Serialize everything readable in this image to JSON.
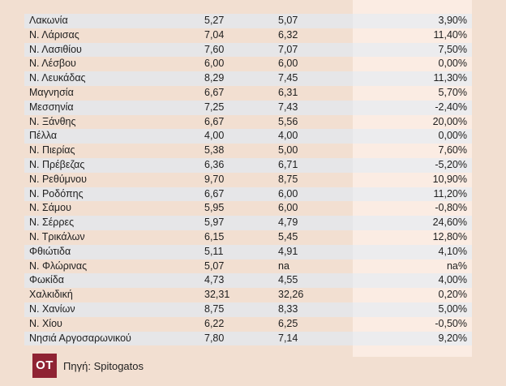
{
  "table": {
    "rows": [
      {
        "region": "Λακωνία",
        "v1": "5,27",
        "v2": "5,07",
        "change": "3,90%"
      },
      {
        "region": "Ν. Λάρισας",
        "v1": "7,04",
        "v2": "6,32",
        "change": "11,40%"
      },
      {
        "region": "Ν. Λασιθίου",
        "v1": "7,60",
        "v2": "7,07",
        "change": "7,50%"
      },
      {
        "region": "Ν. Λέσβου",
        "v1": "6,00",
        "v2": "6,00",
        "change": "0,00%"
      },
      {
        "region": "Ν. Λευκάδας",
        "v1": "8,29",
        "v2": "7,45",
        "change": "11,30%"
      },
      {
        "region": "Μαγνησία",
        "v1": "6,67",
        "v2": "6,31",
        "change": "5,70%"
      },
      {
        "region": "Μεσσηνία",
        "v1": "7,25",
        "v2": "7,43",
        "change": "-2,40%"
      },
      {
        "region": "Ν. Ξάνθης",
        "v1": "6,67",
        "v2": "5,56",
        "change": "20,00%"
      },
      {
        "region": "Πέλλα",
        "v1": "4,00",
        "v2": "4,00",
        "change": "0,00%"
      },
      {
        "region": "Ν. Πιερίας",
        "v1": "5,38",
        "v2": "5,00",
        "change": "7,60%"
      },
      {
        "region": "Ν. Πρέβεζας",
        "v1": "6,36",
        "v2": "6,71",
        "change": "-5,20%"
      },
      {
        "region": "Ν. Ρεθύμνου",
        "v1": "9,70",
        "v2": "8,75",
        "change": "10,90%"
      },
      {
        "region": "Ν. Ροδόπης",
        "v1": "6,67",
        "v2": "6,00",
        "change": "11,20%"
      },
      {
        "region": "Ν. Σάμου",
        "v1": "5,95",
        "v2": "6,00",
        "change": "-0,80%"
      },
      {
        "region": "Ν. Σέρρες",
        "v1": "5,97",
        "v2": "4,79",
        "change": "24,60%"
      },
      {
        "region": "Ν. Τρικάλων",
        "v1": "6,15",
        "v2": "5,45",
        "change": "12,80%"
      },
      {
        "region": "Φθιώτιδα",
        "v1": "5,11",
        "v2": "4,91",
        "change": "4,10%"
      },
      {
        "region": "Ν. Φλώρινας",
        "v1": "5,07",
        "v2": "na",
        "change": "na%"
      },
      {
        "region": "Φωκίδα",
        "v1": "4,73",
        "v2": "4,55",
        "change": "4,00%"
      },
      {
        "region": "Χαλκιδική",
        "v1": "32,31",
        "v2": "32,26",
        "change": "0,20%"
      },
      {
        "region": "Ν. Χανίων",
        "v1": "8,75",
        "v2": "8,33",
        "change": "5,00%"
      },
      {
        "region": "Ν. Χίου",
        "v1": "6,22",
        "v2": "6,25",
        "change": "-0,50%"
      },
      {
        "region": "Νησιά Αργοσαρωνικού",
        "v1": "7,80",
        "v2": "7,14",
        "change": "9,20%"
      }
    ]
  },
  "footer": {
    "logo_text": "OT",
    "source": "Πηγή: Spitogatos"
  },
  "colors": {
    "background": "#f2dfd1",
    "row_shade": "#e6e6e8",
    "highlight_column": "#fbece3",
    "logo": "#8f2333"
  }
}
